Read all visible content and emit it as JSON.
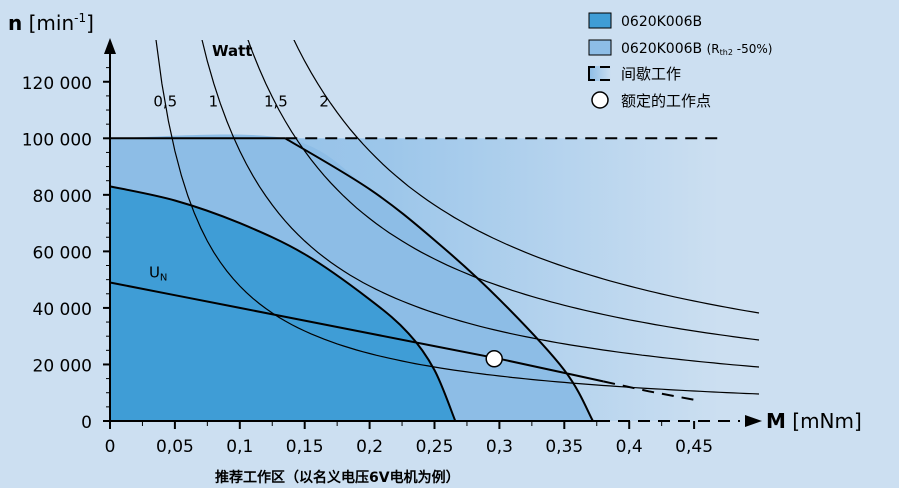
{
  "chart_data": {
    "type": "area",
    "y_axis": {
      "symbol": "n",
      "unit": "min",
      "unit_exp": "-1",
      "ticks": [
        0,
        20000,
        40000,
        60000,
        80000,
        100000,
        120000
      ],
      "tick_labels": [
        "0",
        "20 000",
        "40 000",
        "60 000",
        "80 000",
        "100 000",
        "120 000"
      ],
      "range": [
        0,
        130000
      ]
    },
    "x_axis": {
      "symbol": "M",
      "unit": "[mNm]",
      "ticks": [
        0,
        0.05,
        0.1,
        0.15,
        0.2,
        0.25,
        0.3,
        0.35,
        0.4,
        0.45
      ],
      "tick_labels": [
        "0",
        "0,05",
        "0,1",
        "0,15",
        "0,2",
        "0,25",
        "0,3",
        "0,35",
        "0,4",
        "0,45"
      ],
      "range": [
        0,
        0.5
      ]
    },
    "caption": "推荐工作区（以名义电压6V电机为例）",
    "watt_title": "Watt",
    "legend": [
      {
        "label": "0620K006B",
        "color": "#3f9dd6"
      },
      {
        "label": "0620K006B",
        "label_sub": "(R",
        "label_sub2": "th2",
        "label_sub3": " -50%)",
        "color": "#8dbde6"
      },
      {
        "label": "间歇工作",
        "color": "#a8cfee"
      },
      {
        "label": "额定的工作点",
        "color": "#ffffff"
      }
    ],
    "zones": {
      "continuous_boundary": [
        [
          0,
          83000
        ],
        [
          0.05,
          78000
        ],
        [
          0.1,
          70000
        ],
        [
          0.15,
          59000
        ],
        [
          0.2,
          43000
        ],
        [
          0.23,
          31000
        ],
        [
          0.25,
          18000
        ],
        [
          0.266,
          0
        ]
      ],
      "extended_boundary": [
        [
          0,
          100000
        ],
        [
          0.135,
          100000
        ],
        [
          0.2,
          82000
        ],
        [
          0.25,
          64000
        ],
        [
          0.3,
          43000
        ],
        [
          0.35,
          18000
        ],
        [
          0.372,
          0
        ]
      ],
      "intermittent_limit_speed": 100000,
      "intermittent_limit_torque": 0.47
    },
    "series": [
      {
        "name": "U",
        "name_sub": "N",
        "points": [
          [
            0,
            49000
          ],
          [
            0.05,
            44500
          ],
          [
            0.1,
            40000
          ],
          [
            0.15,
            35500
          ],
          [
            0.2,
            31000
          ],
          [
            0.25,
            26500
          ],
          [
            0.3,
            22000
          ],
          [
            0.35,
            17000
          ],
          [
            0.38,
            14000
          ]
        ],
        "extension": [
          [
            0.38,
            14000
          ],
          [
            0.415,
            10500
          ],
          [
            0.45,
            7500
          ]
        ]
      }
    ],
    "power_curves": [
      {
        "label": "0,5",
        "watts": 0.5
      },
      {
        "label": "1",
        "watts": 1
      },
      {
        "label": "1,5",
        "watts": 1.5
      },
      {
        "label": "2",
        "watts": 2
      }
    ],
    "rated_point": {
      "x": 0.296,
      "y": 22000
    },
    "colors": {
      "background": "#ccdff1",
      "continuous": "#3f9dd6",
      "extended": "#8dbde6",
      "intermittent_light": "#ccdff1",
      "line": "#000000"
    }
  }
}
